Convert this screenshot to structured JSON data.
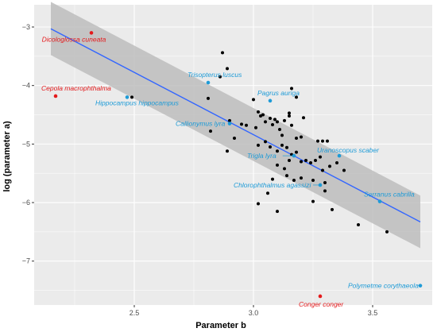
{
  "chart_data": {
    "type": "scatter",
    "title": "",
    "xlabel": "Parameter b",
    "ylabel": "log (parameter a)",
    "xlim": [
      2.08,
      3.75
    ],
    "ylim": [
      -7.75,
      -2.62
    ],
    "x_ticks": [
      2.5,
      3.0,
      3.5
    ],
    "x_tick_labels": [
      "2.5",
      "3.0",
      "3.5"
    ],
    "y_ticks": [
      -7,
      -6,
      -5,
      -4,
      -3
    ],
    "y_tick_labels": [
      "−7",
      "−6",
      "−5",
      "−4",
      "−3"
    ],
    "grid": true,
    "legend": "none",
    "colors": {
      "panel": "#ebebeb",
      "grid_major": "#ffffff",
      "regular_point": "#000000",
      "outlier": "#e41a1c",
      "influential": "#1e9bd7",
      "fit_line": "#3366ff",
      "confidence_band": "#bdbdbd"
    },
    "regression": {
      "x": [
        2.15,
        3.7
      ],
      "fit": [
        -3.03,
        -6.33
      ],
      "lower": [
        -3.48,
        -6.78
      ],
      "upper": [
        -2.57,
        -5.88
      ]
    },
    "points": [
      {
        "x": 2.49,
        "y": -4.2
      },
      {
        "x": 2.81,
        "y": -4.22
      },
      {
        "x": 2.82,
        "y": -4.78
      },
      {
        "x": 2.86,
        "y": -3.85
      },
      {
        "x": 2.87,
        "y": -3.44
      },
      {
        "x": 2.89,
        "y": -3.71
      },
      {
        "x": 2.9,
        "y": -4.6
      },
      {
        "x": 2.92,
        "y": -4.9
      },
      {
        "x": 2.95,
        "y": -4.66
      },
      {
        "x": 2.97,
        "y": -4.68
      },
      {
        "x": 2.89,
        "y": -5.12
      },
      {
        "x": 3.0,
        "y": -4.24
      },
      {
        "x": 3.01,
        "y": -4.72
      },
      {
        "x": 3.02,
        "y": -4.45
      },
      {
        "x": 3.03,
        "y": -4.52
      },
      {
        "x": 3.04,
        "y": -4.5
      },
      {
        "x": 3.05,
        "y": -4.62
      },
      {
        "x": 3.07,
        "y": -4.56
      },
      {
        "x": 3.08,
        "y": -4.67
      },
      {
        "x": 3.09,
        "y": -4.58
      },
      {
        "x": 3.1,
        "y": -4.62
      },
      {
        "x": 3.11,
        "y": -4.75
      },
      {
        "x": 3.12,
        "y": -4.85
      },
      {
        "x": 3.13,
        "y": -4.6
      },
      {
        "x": 3.15,
        "y": -4.47
      },
      {
        "x": 3.16,
        "y": -4.68
      },
      {
        "x": 3.18,
        "y": -4.9
      },
      {
        "x": 3.2,
        "y": -4.88
      },
      {
        "x": 3.21,
        "y": -4.55
      },
      {
        "x": 3.16,
        "y": -4.05
      },
      {
        "x": 3.15,
        "y": -4.52
      },
      {
        "x": 3.02,
        "y": -5.02
      },
      {
        "x": 3.05,
        "y": -4.96
      },
      {
        "x": 3.07,
        "y": -5.05
      },
      {
        "x": 3.1,
        "y": -5.12
      },
      {
        "x": 3.12,
        "y": -5.02
      },
      {
        "x": 3.14,
        "y": -5.06
      },
      {
        "x": 3.16,
        "y": -5.18
      },
      {
        "x": 3.18,
        "y": -5.14
      },
      {
        "x": 3.2,
        "y": -5.3
      },
      {
        "x": 3.1,
        "y": -5.36
      },
      {
        "x": 3.13,
        "y": -5.42
      },
      {
        "x": 3.15,
        "y": -5.28
      },
      {
        "x": 3.08,
        "y": -5.6
      },
      {
        "x": 3.14,
        "y": -5.54
      },
      {
        "x": 3.17,
        "y": -5.62
      },
      {
        "x": 3.2,
        "y": -5.58
      },
      {
        "x": 3.22,
        "y": -5.28
      },
      {
        "x": 3.24,
        "y": -5.32
      },
      {
        "x": 3.26,
        "y": -5.28
      },
      {
        "x": 3.28,
        "y": -5.22
      },
      {
        "x": 3.27,
        "y": -4.95
      },
      {
        "x": 3.29,
        "y": -4.95
      },
      {
        "x": 3.31,
        "y": -4.95
      },
      {
        "x": 3.25,
        "y": -5.62
      },
      {
        "x": 3.29,
        "y": -5.45
      },
      {
        "x": 3.3,
        "y": -5.66
      },
      {
        "x": 3.3,
        "y": -5.8
      },
      {
        "x": 3.32,
        "y": -5.38
      },
      {
        "x": 3.35,
        "y": -5.32
      },
      {
        "x": 3.38,
        "y": -5.45
      },
      {
        "x": 3.25,
        "y": -5.98
      },
      {
        "x": 3.33,
        "y": -6.12
      },
      {
        "x": 3.02,
        "y": -6.02
      },
      {
        "x": 3.06,
        "y": -5.84
      },
      {
        "x": 3.1,
        "y": -6.15
      },
      {
        "x": 3.44,
        "y": -6.38
      },
      {
        "x": 3.56,
        "y": -6.5
      },
      {
        "x": 3.18,
        "y": -4.2
      }
    ],
    "annotations": [
      {
        "label": "Dicologlossa cuneata",
        "x": 2.32,
        "y": -3.1,
        "color": "#e41a1c",
        "anchor": "below"
      },
      {
        "label": "Cepola macrophthalma",
        "x": 2.17,
        "y": -4.18,
        "color": "#e41a1c",
        "anchor": "above"
      },
      {
        "label": "Hippocampus hippocampus",
        "x": 2.47,
        "y": -4.2,
        "color": "#1e9bd7",
        "anchor": "below"
      },
      {
        "label": "Trisopterus luscus",
        "x": 2.81,
        "y": -3.95,
        "color": "#1e9bd7",
        "anchor": "above"
      },
      {
        "label": "Pagrus auriga",
        "x": 3.07,
        "y": -4.26,
        "color": "#1e9bd7",
        "anchor": "above"
      },
      {
        "label": "Callionymus lyra",
        "x": 2.9,
        "y": -4.65,
        "color": "#1e9bd7",
        "anchor": "left"
      },
      {
        "label": "Uranoscopus scaber",
        "x": 3.36,
        "y": -5.2,
        "color": "#1e9bd7",
        "anchor": "above"
      },
      {
        "label": "Trigla lyra",
        "x": 3.17,
        "y": -5.2,
        "color": "#1e9bd7",
        "anchor": "left"
      },
      {
        "label": "Chlorophthalmus agassizi",
        "x": 3.28,
        "y": -5.7,
        "color": "#1e9bd7",
        "anchor": "left"
      },
      {
        "label": "Serranus cabrilla",
        "x": 3.53,
        "y": -5.98,
        "color": "#1e9bd7",
        "anchor": "above"
      },
      {
        "label": "Polymetme corythaeola",
        "x": 3.7,
        "y": -7.42,
        "color": "#1e9bd7",
        "anchor": "left"
      },
      {
        "label": "Conger conger",
        "x": 3.28,
        "y": -7.6,
        "color": "#e41a1c",
        "anchor": "below"
      }
    ]
  }
}
